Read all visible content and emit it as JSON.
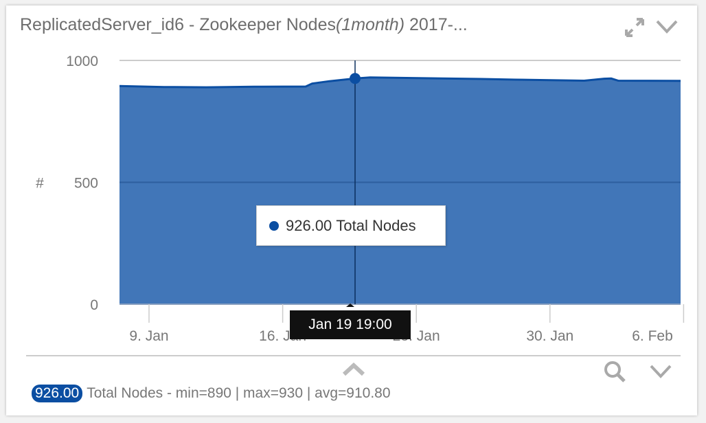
{
  "header": {
    "title_main": "ReplicatedServer_id6 - Zookeeper Nodes",
    "title_italic": "(1month)",
    "title_tail": " 2017-...",
    "expand_icon": "expand-arrows-icon",
    "collapse_icon": "chevron-down-icon"
  },
  "chart_data": {
    "type": "area",
    "ylabel": "#",
    "ylim": [
      0,
      1000
    ],
    "yticks": [
      "0",
      "500",
      "1000"
    ],
    "xticks": [
      "9. Jan",
      "16. Jan",
      "23. Jan",
      "30. Jan",
      "6. Feb"
    ],
    "grid": true,
    "color": "#0b4ea2",
    "fill": "#4176b8",
    "series": [
      {
        "name": "Total Nodes",
        "points": [
          [
            "2017-01-07 11:00",
            895
          ],
          [
            "2017-01-09 19:00",
            891
          ],
          [
            "2017-01-12 00:00",
            890
          ],
          [
            "2017-01-14 12:00",
            892
          ],
          [
            "2017-01-17 05:00",
            893
          ],
          [
            "2017-01-17 13:00",
            905
          ],
          [
            "2017-01-18 11:00",
            915
          ],
          [
            "2017-01-19 19:00",
            926
          ],
          [
            "2017-01-20 14:00",
            930
          ],
          [
            "2017-01-22 19:00",
            928
          ],
          [
            "2017-01-26 10:00",
            924
          ],
          [
            "2017-01-28 05:00",
            921
          ],
          [
            "2017-01-31 19:00",
            917
          ],
          [
            "2017-02-01 20:00",
            925
          ],
          [
            "2017-02-02 05:00",
            926
          ],
          [
            "2017-02-02 14:00",
            917
          ],
          [
            "2017-02-05 20:00",
            916
          ]
        ]
      }
    ],
    "hover": {
      "x_label": "Jan 19 19:00",
      "value": "926.00",
      "series": "Total Nodes"
    }
  },
  "footer": {
    "badge": "926.00",
    "legend_text": "Total Nodes - min=890 | max=930 | avg=910.80",
    "expand_icon": "chevron-up-icon",
    "zoom_icon": "magnifier-icon",
    "more_icon": "chevron-down-icon"
  }
}
